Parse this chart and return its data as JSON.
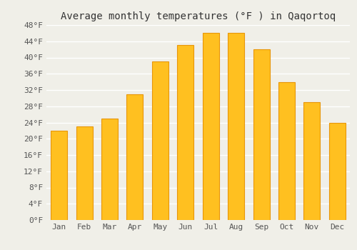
{
  "title": "Average monthly temperatures (°F ) in Qaqortoq",
  "months": [
    "Jan",
    "Feb",
    "Mar",
    "Apr",
    "May",
    "Jun",
    "Jul",
    "Aug",
    "Sep",
    "Oct",
    "Nov",
    "Dec"
  ],
  "values": [
    22,
    23,
    25,
    31,
    39,
    43,
    46,
    46,
    42,
    34,
    29,
    24
  ],
  "bar_color": "#FFC020",
  "bar_edge_color": "#E8960A",
  "background_color": "#F0EFE8",
  "grid_color": "#FFFFFF",
  "ylim": [
    0,
    48
  ],
  "yticks": [
    0,
    4,
    8,
    12,
    16,
    20,
    24,
    28,
    32,
    36,
    40,
    44,
    48
  ],
  "ytick_labels": [
    "0°F",
    "4°F",
    "8°F",
    "12°F",
    "16°F",
    "20°F",
    "24°F",
    "28°F",
    "32°F",
    "36°F",
    "40°F",
    "44°F",
    "48°F"
  ],
  "title_fontsize": 10,
  "tick_fontsize": 8,
  "title_font": "monospace",
  "tick_font": "monospace"
}
